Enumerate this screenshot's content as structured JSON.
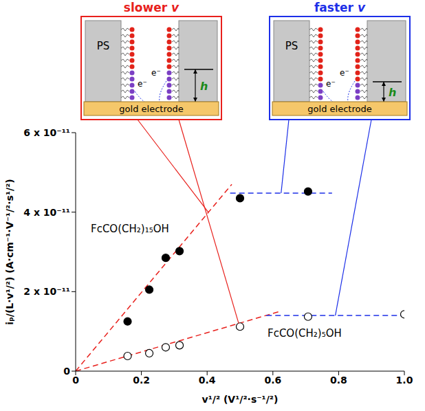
{
  "chart_data": {
    "type": "scatter",
    "x_label": "v¹/² (V¹/²·s⁻¹/²)",
    "y_label": "iₚ/(L·v¹/²) (A·cm⁻¹·V⁻¹/²·s¹/²)",
    "xlim": [
      0,
      1
    ],
    "ylim": [
      0,
      6e-11
    ],
    "xticks": [
      0,
      0.2,
      0.4,
      0.6,
      0.8,
      {
        "value": 1,
        "label": "1.0"
      }
    ],
    "yticks": [
      0,
      {
        "value": 2e-11,
        "label": "2 x 10⁻¹¹"
      },
      {
        "value": 4e-11,
        "label": "4 x 10⁻¹¹"
      },
      {
        "value": 6e-11,
        "label": "6 x 10⁻¹¹"
      }
    ],
    "grid": false,
    "series": [
      {
        "name": "FcCO(CH₂)₁₅OH",
        "color": "#000000",
        "marker": "filled",
        "x": [
          0.158,
          0.224,
          0.274,
          0.316,
          0.5,
          0.707
        ],
        "values": [
          1.25e-11,
          2.05e-11,
          2.85e-11,
          3.02e-11,
          4.35e-11,
          4.52e-11
        ]
      },
      {
        "name": "FcCO(CH₂)₅OH",
        "color": "#000000",
        "marker": "open",
        "x": [
          0.158,
          0.224,
          0.274,
          0.316,
          0.5,
          0.707,
          1.0
        ],
        "values": [
          3.8e-12,
          4.5e-12,
          6e-12,
          6.5e-12,
          1.12e-11,
          1.37e-11,
          1.43e-11
        ]
      }
    ],
    "fit_lines": [
      {
        "color": "#e8201c",
        "line_style": "dashed",
        "x": [
          0,
          0.475
        ],
        "values": [
          0,
          4.7e-11
        ]
      },
      {
        "color": "#e8201c",
        "line_style": "dashed",
        "x": [
          0,
          0.62
        ],
        "values": [
          0,
          1.5e-11
        ]
      },
      {
        "color": "#1c2fe8",
        "line_style": "dashed",
        "x": [
          0.47,
          0.78
        ],
        "values": [
          4.48e-11,
          4.48e-11
        ]
      },
      {
        "color": "#1c2fe8",
        "line_style": "dashed",
        "x": [
          0.58,
          1.0
        ],
        "values": [
          1.4e-11,
          1.4e-11
        ]
      }
    ],
    "insets": [
      {
        "title": "slower v",
        "color": "#e8201c"
      },
      {
        "title": "faster v",
        "color": "#1c2fe8"
      }
    ],
    "inset_labels": {
      "polymer": "PS",
      "electrode": "gold electrode",
      "electron": "e⁻",
      "height": "h"
    }
  }
}
